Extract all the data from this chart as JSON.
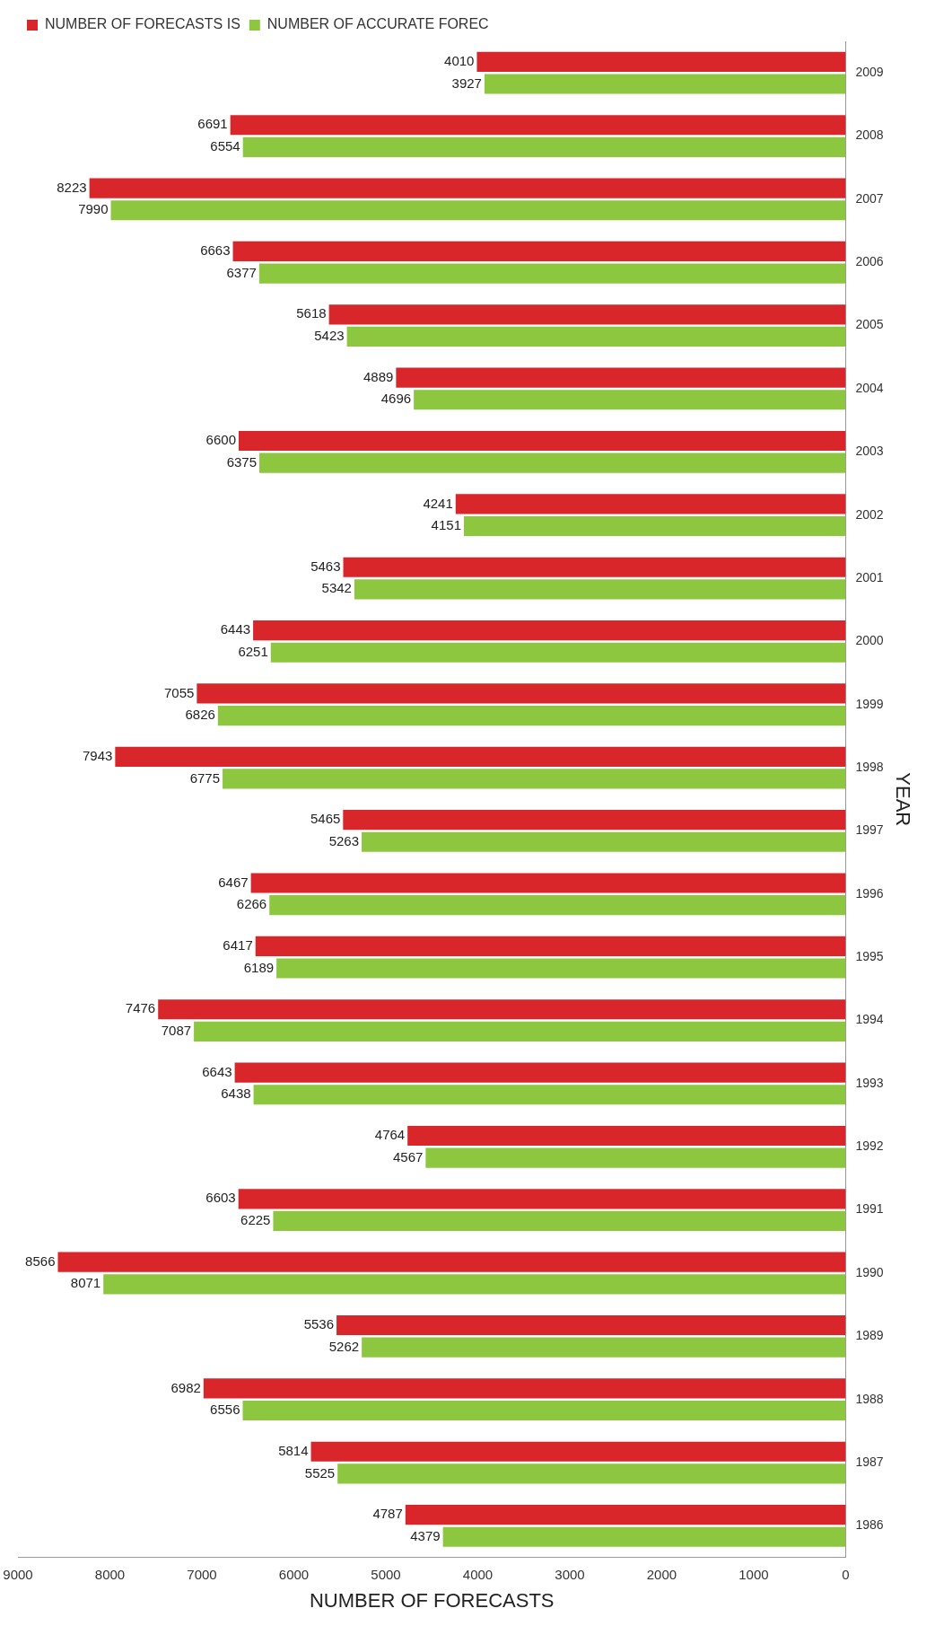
{
  "chart_data": {
    "type": "bar",
    "orientation": "horizontal",
    "xlabel": "NUMBER OF FORECASTS",
    "ylabel": "YEAR",
    "categories": [
      "2009",
      "2008",
      "2007",
      "2006",
      "2005",
      "2004",
      "2003",
      "2002",
      "2001",
      "2000",
      "1999",
      "1998",
      "1997",
      "1996",
      "1995",
      "1994",
      "1993",
      "1992",
      "1991",
      "1990",
      "1989",
      "1988",
      "1987",
      "1986"
    ],
    "series": [
      {
        "name": "NUMBER OF FORECASTS IS",
        "color": "#d9262b",
        "values": [
          4010,
          6691,
          8223,
          6663,
          5618,
          4889,
          6600,
          4241,
          5463,
          6443,
          7055,
          7943,
          5465,
          6467,
          6417,
          7476,
          6643,
          4764,
          6603,
          8566,
          5536,
          6982,
          5814,
          4787
        ]
      },
      {
        "name": "NUMBER OF ACCURATE FOREC",
        "color": "#8dc63f",
        "values": [
          3927,
          6554,
          7990,
          6377,
          5423,
          4696,
          6375,
          4151,
          5342,
          6251,
          6826,
          6775,
          5263,
          6266,
          6189,
          7087,
          6438,
          4567,
          6225,
          8071,
          5262,
          6556,
          5525,
          4379
        ]
      }
    ],
    "xlim": [
      9000,
      0
    ],
    "xticks": [
      9000,
      8000,
      7000,
      6000,
      5000,
      4000,
      3000,
      2000,
      1000,
      0
    ],
    "data_labels": true,
    "legend": "top left",
    "grid": false
  }
}
